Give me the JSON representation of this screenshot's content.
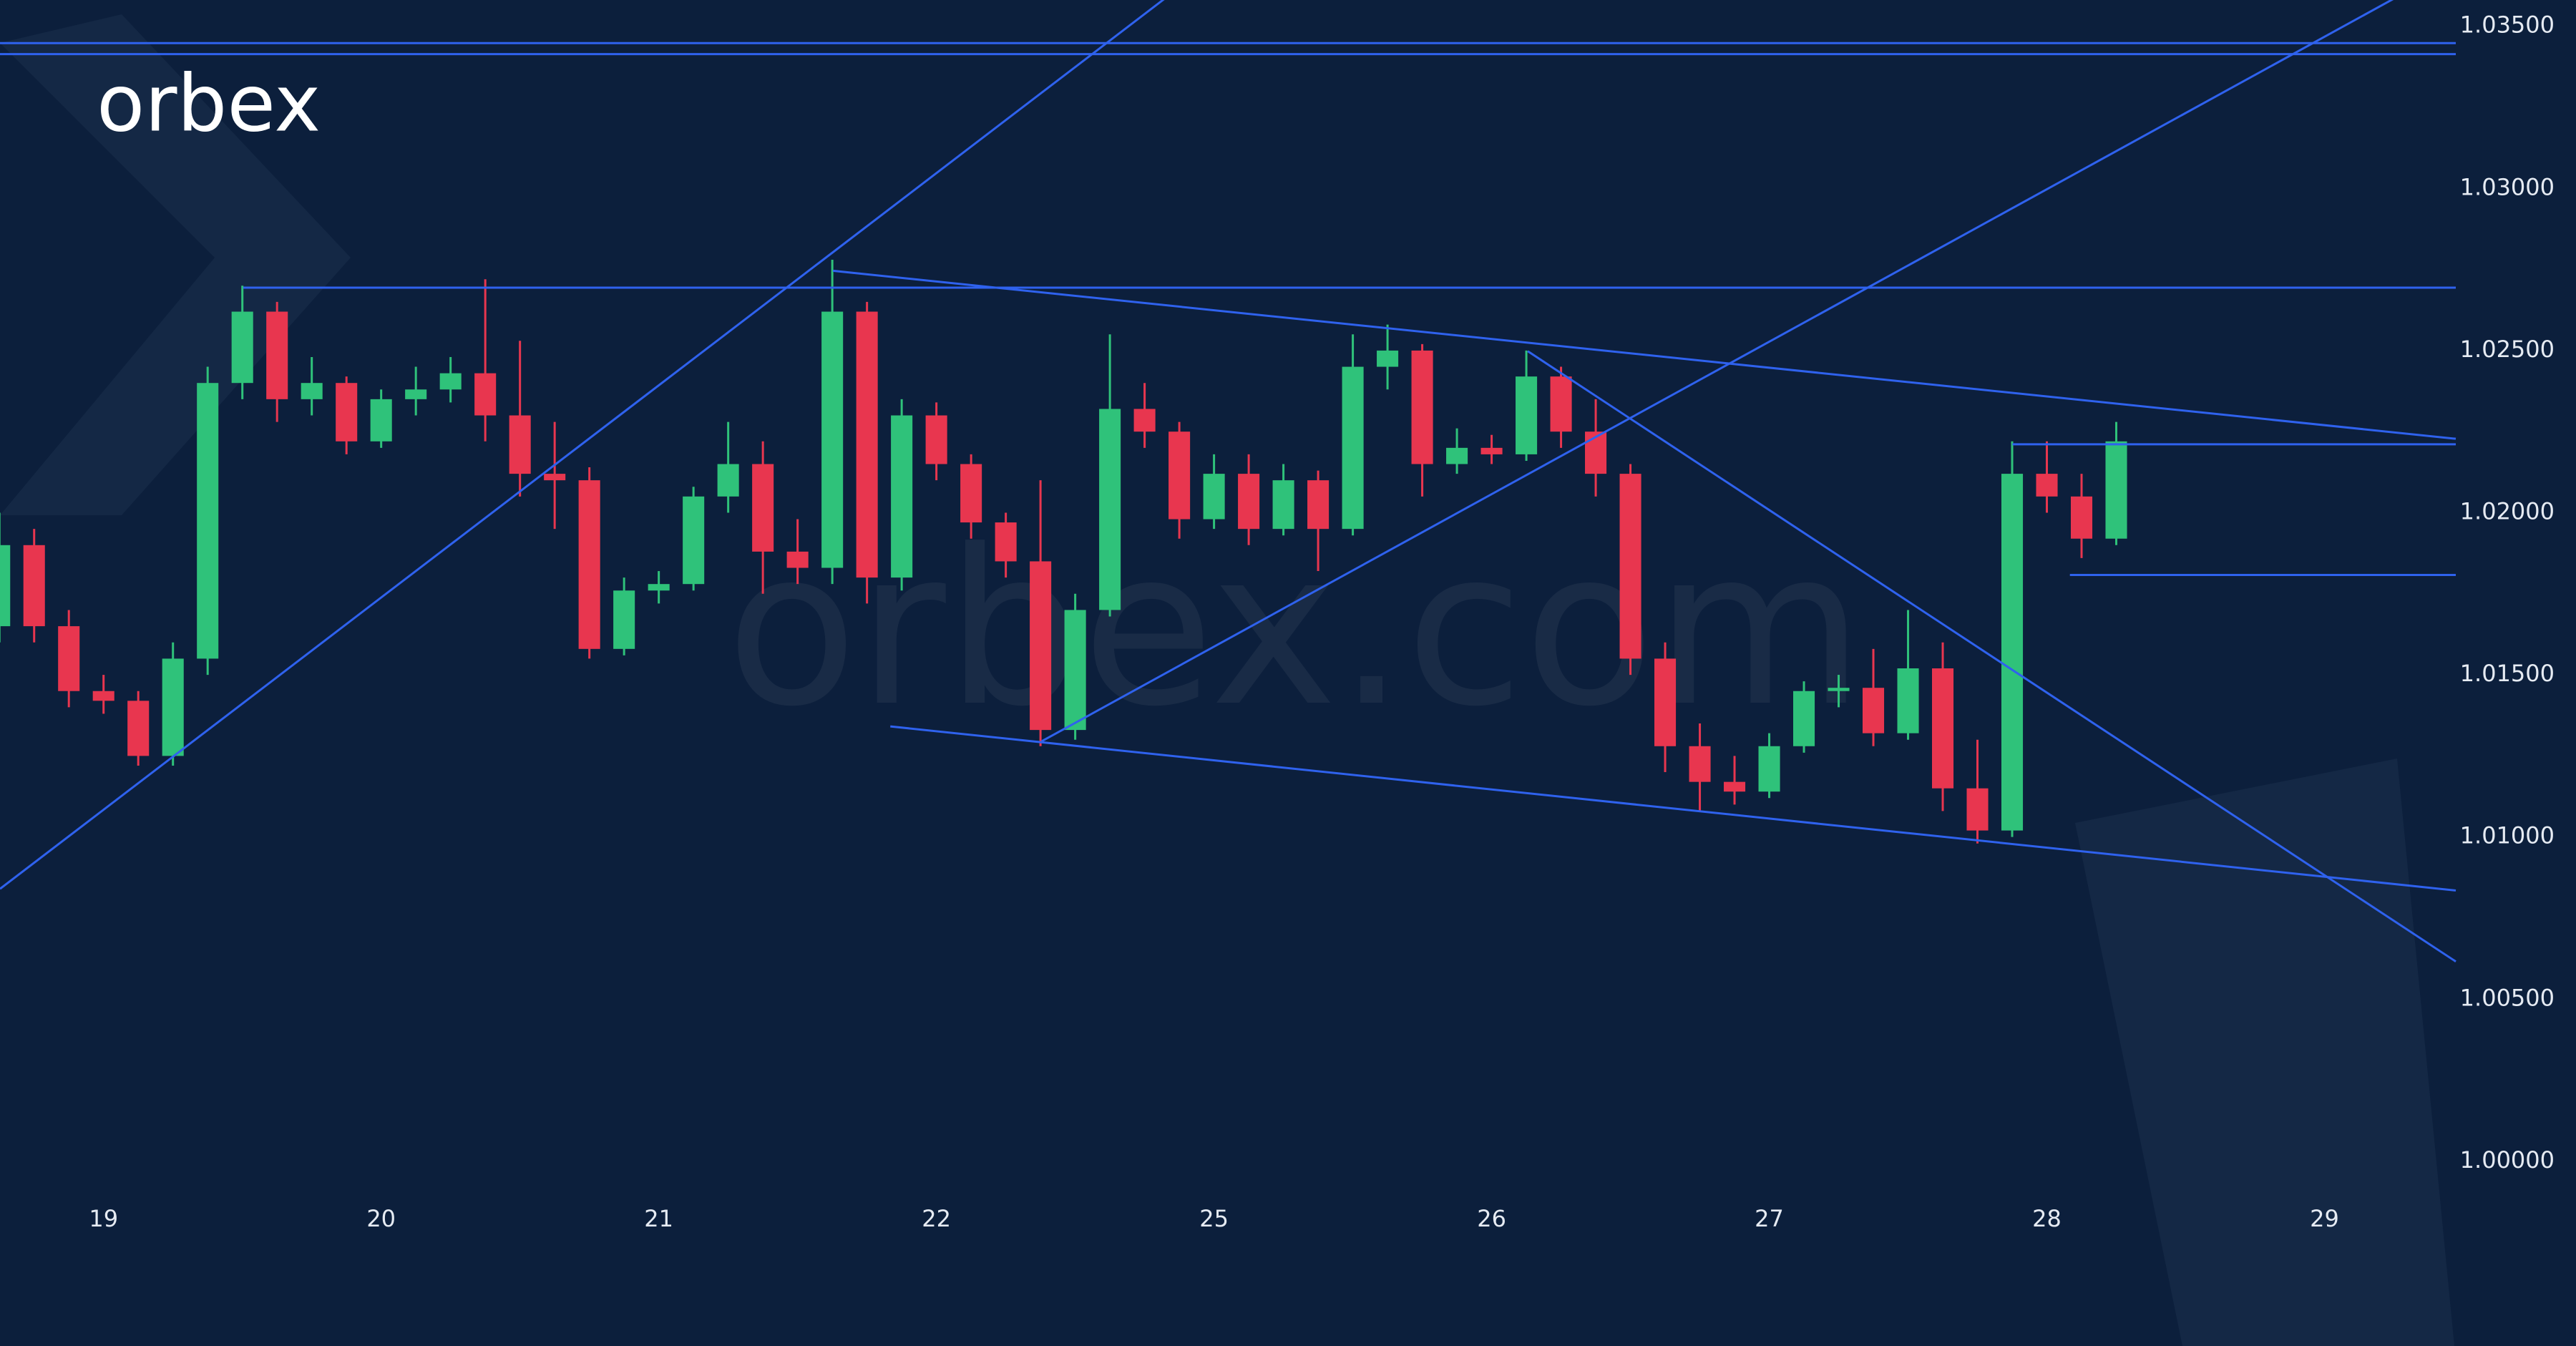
{
  "chart_data": {
    "type": "candlestick",
    "logo": "orbex",
    "watermark": "orbex.com",
    "background": "#0c1f3c",
    "up_color": "#2fc27a",
    "down_color": "#e8364f",
    "line_color": "#2f62ee",
    "xlim": [
      -0.373,
      8.473
    ],
    "ylim": [
      0.99907,
      1.03581
    ],
    "xticks": [
      {
        "value": 0,
        "label": "19"
      },
      {
        "value": 1,
        "label": "20"
      },
      {
        "value": 2,
        "label": "21"
      },
      {
        "value": 3,
        "label": "22"
      },
      {
        "value": 4,
        "label": "25"
      },
      {
        "value": 5,
        "label": "26"
      },
      {
        "value": 6,
        "label": "27"
      },
      {
        "value": 7,
        "label": "28"
      },
      {
        "value": 8,
        "label": "29"
      }
    ],
    "yticks": [
      {
        "value": 1.0,
        "label": "1.00000"
      },
      {
        "value": 1.005,
        "label": "1.00500"
      },
      {
        "value": 1.01,
        "label": "1.01000"
      },
      {
        "value": 1.015,
        "label": "1.01500"
      },
      {
        "value": 1.02,
        "label": "1.02000"
      },
      {
        "value": 1.025,
        "label": "1.02500"
      },
      {
        "value": 1.03,
        "label": "1.03000"
      },
      {
        "value": 1.035,
        "label": "1.03500"
      }
    ],
    "candles": {
      "x": [
        -0.375,
        -0.25,
        -0.125,
        0,
        0.125,
        0.25,
        0.375,
        0.5,
        0.625,
        0.75,
        0.875,
        1,
        1.125,
        1.25,
        1.375,
        1.5,
        1.625,
        1.75,
        1.875,
        2,
        2.125,
        2.25,
        2.375,
        2.5,
        2.625,
        2.75,
        2.875,
        3,
        3.125,
        3.25,
        3.375,
        3.5,
        3.625,
        3.75,
        3.875,
        4,
        4.125,
        4.25,
        4.375,
        4.5,
        4.625,
        4.75,
        4.875,
        5,
        5.125,
        5.25,
        5.375,
        5.5,
        5.625,
        5.75,
        5.875,
        6,
        6.125,
        6.25,
        6.375,
        6.5,
        6.625,
        6.75,
        6.875,
        7,
        7.125,
        7.25
      ],
      "open": [
        1.0165,
        1.019,
        1.0165,
        1.0145,
        1.0142,
        1.0125,
        1.0155,
        1.024,
        1.0262,
        1.0235,
        1.024,
        1.0222,
        1.0235,
        1.0238,
        1.0243,
        1.023,
        1.0212,
        1.021,
        1.0158,
        1.0176,
        1.0178,
        1.0205,
        1.0215,
        1.0188,
        1.0183,
        1.0262,
        1.018,
        1.023,
        1.0215,
        1.0197,
        1.0185,
        1.0133,
        1.017,
        1.0232,
        1.0225,
        1.0198,
        1.0212,
        1.0195,
        1.021,
        1.0195,
        1.0245,
        1.025,
        1.0215,
        1.022,
        1.0218,
        1.0242,
        1.0225,
        1.0212,
        1.0155,
        1.0128,
        1.0117,
        1.0114,
        1.0128,
        1.0145,
        1.0146,
        1.0132,
        1.0152,
        1.0115,
        1.0102,
        1.0212,
        1.0205,
        1.0192
      ],
      "high": [
        1.02,
        1.0195,
        1.017,
        1.015,
        1.0145,
        1.016,
        1.0245,
        1.027,
        1.0265,
        1.0248,
        1.0242,
        1.0238,
        1.0245,
        1.0248,
        1.0272,
        1.0253,
        1.0228,
        1.0214,
        1.018,
        1.0182,
        1.0208,
        1.0228,
        1.0222,
        1.0198,
        1.0278,
        1.0265,
        1.0235,
        1.0234,
        1.0218,
        1.02,
        1.021,
        1.0175,
        1.0255,
        1.024,
        1.0228,
        1.0218,
        1.0218,
        1.0215,
        1.0213,
        1.0255,
        1.0258,
        1.0252,
        1.0226,
        1.0224,
        1.025,
        1.0245,
        1.0235,
        1.0215,
        1.016,
        1.0135,
        1.0125,
        1.0132,
        1.0148,
        1.015,
        1.0158,
        1.017,
        1.016,
        1.013,
        1.0222,
        1.0222,
        1.0212,
        1.0228
      ],
      "low": [
        1.016,
        1.016,
        1.014,
        1.0138,
        1.0122,
        1.0122,
        1.015,
        1.0235,
        1.0228,
        1.023,
        1.0218,
        1.022,
        1.023,
        1.0234,
        1.0222,
        1.0205,
        1.0195,
        1.0155,
        1.0156,
        1.0172,
        1.0176,
        1.02,
        1.0175,
        1.0178,
        1.0178,
        1.0172,
        1.0176,
        1.021,
        1.0192,
        1.018,
        1.0128,
        1.013,
        1.0168,
        1.022,
        1.0192,
        1.0195,
        1.019,
        1.0193,
        1.0182,
        1.0193,
        1.0238,
        1.0205,
        1.0212,
        1.0215,
        1.0216,
        1.022,
        1.0205,
        1.015,
        1.012,
        1.0108,
        1.011,
        1.0112,
        1.0126,
        1.014,
        1.0128,
        1.013,
        1.0108,
        1.0098,
        1.01,
        1.02,
        1.0186,
        1.019
      ],
      "close": [
        1.019,
        1.0165,
        1.0145,
        1.0142,
        1.0125,
        1.0155,
        1.024,
        1.0262,
        1.0235,
        1.024,
        1.0222,
        1.0235,
        1.0238,
        1.0243,
        1.023,
        1.0212,
        1.021,
        1.0158,
        1.0176,
        1.0178,
        1.0205,
        1.0215,
        1.0188,
        1.0183,
        1.0262,
        1.018,
        1.023,
        1.0215,
        1.0197,
        1.0185,
        1.0133,
        1.017,
        1.0232,
        1.0225,
        1.0198,
        1.0212,
        1.0195,
        1.021,
        1.0195,
        1.0245,
        1.025,
        1.0215,
        1.022,
        1.0218,
        1.0242,
        1.0225,
        1.0212,
        1.0155,
        1.0128,
        1.0117,
        1.0114,
        1.0128,
        1.0145,
        1.0146,
        1.0132,
        1.0152,
        1.0115,
        1.0102,
        1.0212,
        1.0205,
        1.0192,
        1.0222
      ]
    },
    "trendlines": [
      {
        "x": [
          -0.373,
          8.473
        ],
        "y": [
          1.03448,
          1.03448
        ]
      },
      {
        "x": [
          -0.373,
          8.473
        ],
        "y": [
          1.03414,
          1.03414
        ]
      },
      {
        "x": [
          0.503,
          8.473
        ],
        "y": [
          1.02694,
          1.02694
        ]
      },
      {
        "x": [
          -0.373,
          4.036
        ],
        "y": [
          1.0084,
          1.03725
        ]
      },
      {
        "x": [
          2.627,
          8.473
        ],
        "y": [
          1.02746,
          1.02228
        ]
      },
      {
        "x": [
          2.834,
          8.473
        ],
        "y": [
          1.01341,
          1.00835
        ]
      },
      {
        "x": [
          3.379,
          8.473
        ],
        "y": [
          1.01295,
          1.0369
        ]
      },
      {
        "x": [
          5.13,
          8.473
        ],
        "y": [
          1.02498,
          1.00616
        ]
      },
      {
        "x": [
          6.876,
          8.473
        ],
        "y": [
          1.02211,
          1.02211
        ]
      },
      {
        "x": [
          7.083,
          8.473
        ],
        "y": [
          1.01808,
          1.01808
        ]
      }
    ]
  }
}
